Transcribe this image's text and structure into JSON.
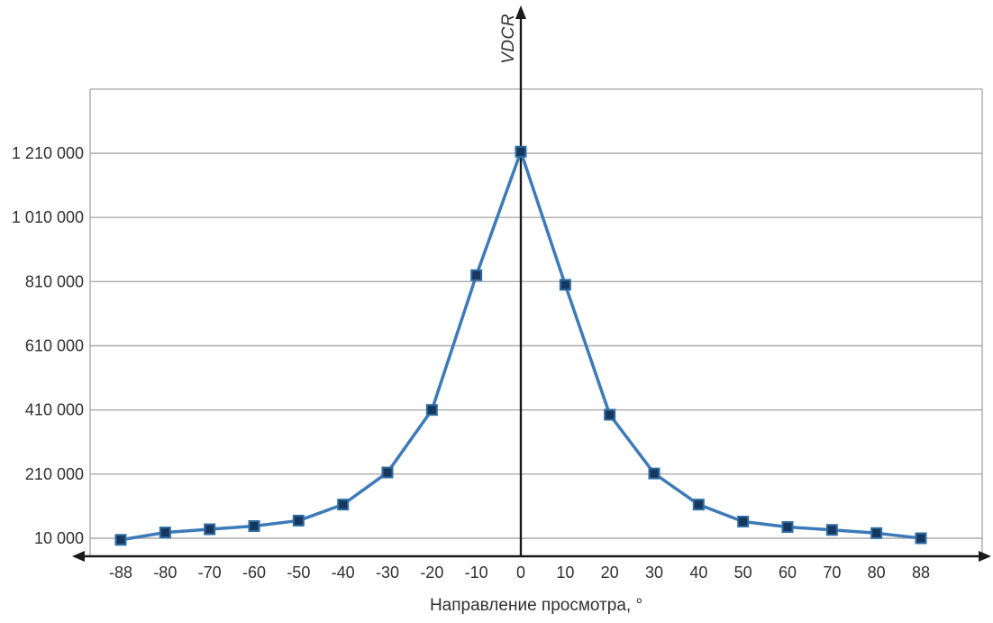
{
  "chart_data": {
    "type": "line",
    "title": "",
    "xlabel": "Направление просмотра, °",
    "ylabel": "VDCR",
    "categories": [
      "-88",
      "-80",
      "-70",
      "-60",
      "-50",
      "-40",
      "-30",
      "-20",
      "-10",
      "0",
      "10",
      "20",
      "30",
      "40",
      "50",
      "60",
      "70",
      "80",
      "88"
    ],
    "values": [
      5000,
      28000,
      38000,
      48000,
      65000,
      115000,
      215000,
      410000,
      830000,
      1215000,
      800000,
      395000,
      212000,
      115000,
      62000,
      45000,
      36000,
      26000,
      10000
    ],
    "y_tick_labels": [
      "10 000",
      "210 000",
      "410 000",
      "610 000",
      "810 000",
      "1 010 000",
      "1 210 000"
    ],
    "y_tick_values": [
      10000,
      210000,
      410000,
      610000,
      810000,
      1010000,
      1210000
    ],
    "y_top_gridline_value": 1410000,
    "ylim": [
      -46000,
      1450000
    ],
    "grid": "horizontal",
    "legend": "none",
    "colors": {
      "line": "#3d7ab8",
      "marker_fill": "#17375e",
      "marker_stroke": "#2e6da4",
      "grid": "#ababab",
      "axis": "#1a1a1a",
      "text": "#303030"
    }
  }
}
